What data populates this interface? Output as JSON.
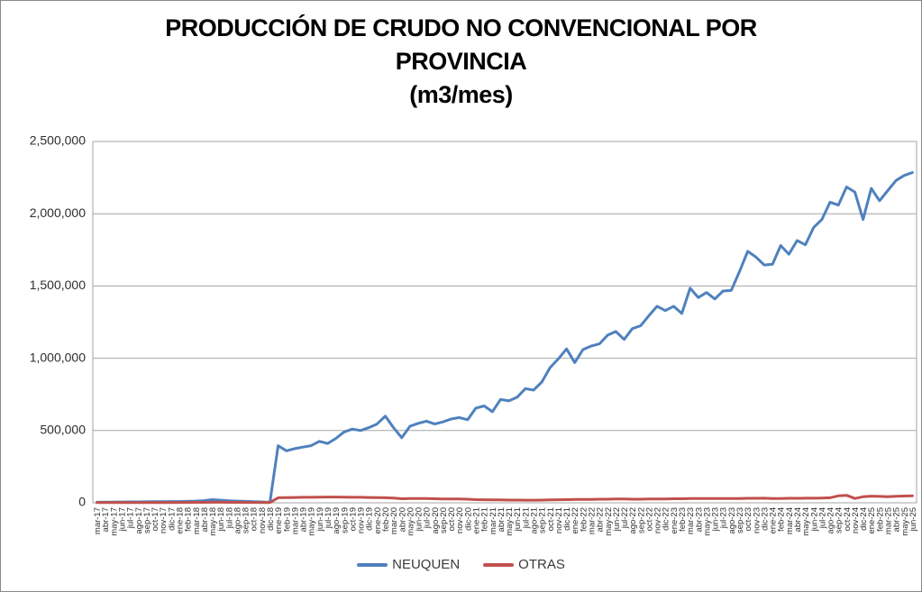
{
  "chart_data": {
    "type": "line",
    "title": "PRODUCCIÓN DE CRUDO NO CONVENCIONAL POR PROVINCIA (m3/mes)",
    "title_lines": [
      "PRODUCCIÓN DE CRUDO NO CONVENCIONAL POR",
      "PROVINCIA",
      "(m3/mes)"
    ],
    "xlabel": "",
    "ylabel": "",
    "ylim": [
      0,
      2500000
    ],
    "yticks": [
      0,
      500000,
      1000000,
      1500000,
      2000000,
      2500000
    ],
    "ytick_labels": [
      "0",
      "500,000",
      "1,000,000",
      "1,500,000",
      "2,000,000",
      "2,500,000"
    ],
    "grid": true,
    "legend_position": "bottom",
    "x_label_rotation": -90,
    "categories": [
      "mar-17",
      "abr-17",
      "may-17",
      "jun-17",
      "jul-17",
      "ago-17",
      "sep-17",
      "oct-17",
      "nov-17",
      "dic-17",
      "ene-18",
      "feb-18",
      "mar-18",
      "abr-18",
      "may-18",
      "jun-18",
      "jul-18",
      "ago-18",
      "sep-18",
      "oct-18",
      "nov-18",
      "dic-18",
      "ene-19",
      "feb-19",
      "mar-19",
      "abr-19",
      "may-19",
      "jun-19",
      "jul-19",
      "ago-19",
      "sep-19",
      "oct-19",
      "nov-19",
      "dic-19",
      "ene-20",
      "feb-20",
      "mar-20",
      "abr-20",
      "may-20",
      "jun-20",
      "jul-20",
      "ago-20",
      "sep-20",
      "oct-20",
      "nov-20",
      "dic-20",
      "ene-21",
      "feb-21",
      "mar-21",
      "abr-21",
      "may-21",
      "jun-21",
      "jul-21",
      "ago-21",
      "sep-21",
      "oct-21",
      "nov-21",
      "dic-21",
      "ene-22",
      "feb-22",
      "mar-22",
      "abr-22",
      "may-22",
      "jun-22",
      "jul-22",
      "ago-22",
      "sep-22",
      "oct-22",
      "nov-22",
      "dic-22",
      "ene-23",
      "feb-23",
      "mar-23",
      "abr-23",
      "may-23",
      "jun-23",
      "jul-23",
      "ago-23",
      "sep-23",
      "oct-23",
      "nov-23",
      "dic-23",
      "ene-24",
      "feb-24",
      "mar-24",
      "abr-24",
      "may-24",
      "jun-24",
      "jul-24",
      "ago-24",
      "sep-24",
      "oct-24",
      "nov-24",
      "dic-24",
      "ene-25",
      "feb-25",
      "mar-25",
      "abr-25",
      "may-25",
      "jun-25"
    ],
    "series": [
      {
        "name": "NEUQUEN",
        "color": "#4F81BD",
        "values": [
          4000,
          4500,
          5000,
          5500,
          6000,
          6500,
          7000,
          7500,
          8000,
          8500,
          9000,
          10000,
          12000,
          15000,
          22000,
          18000,
          14000,
          12000,
          10000,
          8000,
          6000,
          3000,
          395000,
          360000,
          375000,
          385000,
          395000,
          425000,
          410000,
          445000,
          490000,
          510000,
          500000,
          520000,
          545000,
          600000,
          520000,
          450000,
          530000,
          550000,
          565000,
          545000,
          560000,
          580000,
          590000,
          575000,
          655000,
          670000,
          630000,
          715000,
          705000,
          730000,
          790000,
          780000,
          835000,
          935000,
          995000,
          1065000,
          970000,
          1060000,
          1085000,
          1100000,
          1160000,
          1185000,
          1130000,
          1205000,
          1225000,
          1295000,
          1360000,
          1330000,
          1360000,
          1310000,
          1485000,
          1420000,
          1455000,
          1410000,
          1465000,
          1470000,
          1600000,
          1740000,
          1700000,
          1645000,
          1650000,
          1780000,
          1720000,
          1815000,
          1785000,
          1905000,
          1960000,
          2080000,
          2060000,
          2185000,
          2150000,
          1960000,
          2175000,
          2090000,
          2160000,
          2230000,
          2265000,
          2285000
        ]
      },
      {
        "name": "OTRAS",
        "color": "#C0504D",
        "values": [
          2000,
          2000,
          2000,
          2000,
          2000,
          2000,
          2000,
          2000,
          2000,
          2000,
          2500,
          2500,
          3000,
          3000,
          3500,
          3500,
          3000,
          3000,
          2500,
          2500,
          2000,
          2000,
          35000,
          36000,
          37000,
          38000,
          38000,
          39000,
          40000,
          40000,
          39000,
          38000,
          38000,
          37000,
          36000,
          35000,
          33000,
          28000,
          30000,
          30000,
          29000,
          28000,
          27000,
          27000,
          26000,
          25000,
          22000,
          21000,
          20000,
          20000,
          19000,
          19000,
          18000,
          18000,
          19000,
          20000,
          21000,
          22000,
          23000,
          24000,
          24000,
          25000,
          25000,
          26000,
          26000,
          25000,
          25000,
          26000,
          27000,
          27000,
          28000,
          28000,
          29000,
          29000,
          30000,
          29000,
          29000,
          30000,
          30000,
          31000,
          31000,
          32000,
          30000,
          30000,
          31000,
          31000,
          32000,
          32000,
          33000,
          35000,
          48000,
          52000,
          30000,
          42000,
          46000,
          44000,
          42000,
          45000,
          47000,
          48000
        ]
      }
    ],
    "colors": {
      "gridline": "#A6A6A6",
      "plot_border": "#A6A6A6",
      "axis_text": "#2e2e2e",
      "figure_border": "#898989"
    }
  }
}
